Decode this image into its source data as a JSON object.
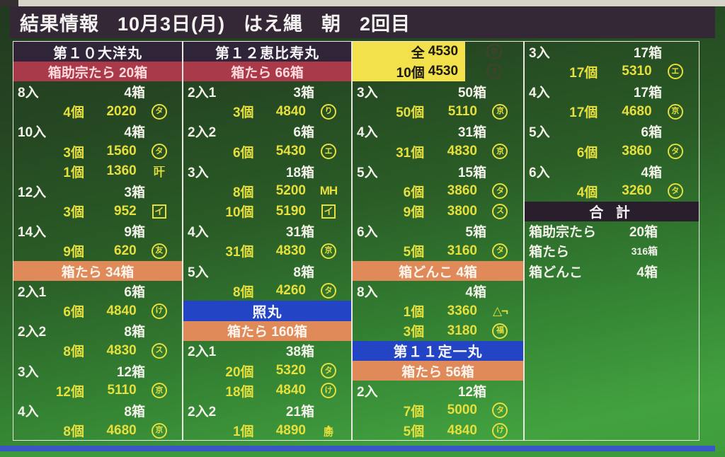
{
  "header": {
    "title": "結果情報",
    "date": "10月3日(月)",
    "method": "はえ縄",
    "session": "朝",
    "round": "2回目"
  },
  "colors": {
    "screen_green_top": "#22391f",
    "screen_green_bottom": "#42a23f",
    "titlebar_bg": "#342836",
    "boat_dark_bg": "#2f2438",
    "boat_blue_bg": "#2344c4",
    "species_red_bg": "#a93a49",
    "species_orange_bg": "#e18a59",
    "highlight_yellow_bg": "#f2e14b",
    "value_yellow": "#e6df3d",
    "text_white": "#f2f1ea"
  },
  "columns": [
    {
      "rows": [
        {
          "t": "boat",
          "style": "dark",
          "label": "第１０大洋丸"
        },
        {
          "t": "species",
          "style": "red",
          "label": "箱助宗たら 20箱"
        },
        {
          "t": "size",
          "label": "8入",
          "boxes": "4箱"
        },
        {
          "t": "detail",
          "count": "4個",
          "price": "2020",
          "mark": {
            "kind": "circle",
            "char": "タ"
          }
        },
        {
          "t": "size",
          "label": "10入",
          "boxes": "4箱"
        },
        {
          "t": "detail",
          "count": "3個",
          "price": "1560",
          "mark": {
            "kind": "circle",
            "char": "タ"
          }
        },
        {
          "t": "detail",
          "count": "1個",
          "price": "1360",
          "mark": {
            "kind": "overline",
            "char": "叶"
          }
        },
        {
          "t": "size",
          "label": "12入",
          "boxes": "3箱"
        },
        {
          "t": "detail",
          "count": "3個",
          "price": "952",
          "mark": {
            "kind": "box",
            "char": "イ"
          }
        },
        {
          "t": "size",
          "label": "14入",
          "boxes": "9箱"
        },
        {
          "t": "detail",
          "count": "9個",
          "price": "620",
          "mark": {
            "kind": "circle",
            "char": "友"
          }
        },
        {
          "t": "species",
          "style": "orange",
          "label": "箱たら 34箱"
        },
        {
          "t": "size",
          "label": "2入1",
          "boxes": "6箱"
        },
        {
          "t": "detail",
          "count": "6個",
          "price": "4840",
          "mark": {
            "kind": "circle",
            "char": "け"
          }
        },
        {
          "t": "size",
          "label": "2入2",
          "boxes": "8箱"
        },
        {
          "t": "detail",
          "count": "8個",
          "price": "4830",
          "mark": {
            "kind": "circle",
            "char": "ス"
          }
        },
        {
          "t": "size",
          "label": "3入",
          "boxes": "12箱"
        },
        {
          "t": "detail",
          "count": "12個",
          "price": "5110",
          "mark": {
            "kind": "circle",
            "char": "京"
          }
        },
        {
          "t": "size",
          "label": "4入",
          "boxes": "8箱"
        },
        {
          "t": "detail",
          "count": "8個",
          "price": "4680",
          "mark": {
            "kind": "circle",
            "char": "京"
          }
        }
      ]
    },
    {
      "rows": [
        {
          "t": "boat",
          "style": "dark",
          "label": "第１２恵比寿丸"
        },
        {
          "t": "species",
          "style": "red",
          "label": "箱たら 66箱"
        },
        {
          "t": "size",
          "label": "2入1",
          "boxes": "3箱"
        },
        {
          "t": "detail",
          "count": "3個",
          "price": "4840",
          "mark": {
            "kind": "circle",
            "char": "り"
          }
        },
        {
          "t": "size",
          "label": "2入2",
          "boxes": "6箱"
        },
        {
          "t": "detail",
          "count": "6個",
          "price": "5430",
          "mark": {
            "kind": "circle",
            "char": "エ"
          }
        },
        {
          "t": "size",
          "label": "3入",
          "boxes": "18箱"
        },
        {
          "t": "detail",
          "count": "8個",
          "price": "5200",
          "mark": {
            "kind": "text",
            "char": "MH"
          }
        },
        {
          "t": "detail",
          "count": "10個",
          "price": "5190",
          "mark": {
            "kind": "box",
            "char": "イ"
          }
        },
        {
          "t": "size",
          "label": "4入",
          "boxes": "31箱"
        },
        {
          "t": "detail",
          "count": "31個",
          "price": "4830",
          "mark": {
            "kind": "circle",
            "char": "京"
          }
        },
        {
          "t": "size",
          "label": "5入",
          "boxes": "8箱"
        },
        {
          "t": "detail",
          "count": "8個",
          "price": "4260",
          "mark": {
            "kind": "circle",
            "char": "タ"
          }
        },
        {
          "t": "boat",
          "style": "blue",
          "label": "照丸"
        },
        {
          "t": "species",
          "style": "orange",
          "label": "箱たら 160箱"
        },
        {
          "t": "size",
          "label": "2入1",
          "boxes": "38箱"
        },
        {
          "t": "detail",
          "count": "20個",
          "price": "5320",
          "mark": {
            "kind": "circle",
            "char": "タ"
          }
        },
        {
          "t": "detail",
          "count": "18個",
          "price": "4840",
          "mark": {
            "kind": "circle",
            "char": "け"
          }
        },
        {
          "t": "size",
          "label": "2入2",
          "boxes": "21箱"
        },
        {
          "t": "detail",
          "count": "1個",
          "price": "4890",
          "mark": {
            "kind": "roof",
            "char": "勝"
          }
        }
      ]
    },
    {
      "rows": [
        {
          "t": "highlight",
          "count": "全",
          "price": "4530",
          "mark": {
            "kind": "circle",
            "char": "京"
          }
        },
        {
          "t": "highlight",
          "count": "10個",
          "price": "4530",
          "mark": {
            "kind": "circle",
            "char": "ス"
          }
        },
        {
          "t": "size",
          "label": "3入",
          "boxes": "50箱"
        },
        {
          "t": "detail",
          "count": "50個",
          "price": "5110",
          "mark": {
            "kind": "circle",
            "char": "京"
          }
        },
        {
          "t": "size",
          "label": "4入",
          "boxes": "31箱"
        },
        {
          "t": "detail",
          "count": "31個",
          "price": "4830",
          "mark": {
            "kind": "circle",
            "char": "京"
          }
        },
        {
          "t": "size",
          "label": "5入",
          "boxes": "15箱"
        },
        {
          "t": "detail",
          "count": "6個",
          "price": "3860",
          "mark": {
            "kind": "circle",
            "char": "タ"
          }
        },
        {
          "t": "detail",
          "count": "9個",
          "price": "3800",
          "mark": {
            "kind": "circle",
            "char": "ス"
          }
        },
        {
          "t": "size",
          "label": "6入",
          "boxes": "5箱"
        },
        {
          "t": "detail",
          "count": "5個",
          "price": "3160",
          "mark": {
            "kind": "circle",
            "char": "タ"
          }
        },
        {
          "t": "species",
          "style": "orange",
          "label": "箱どんこ 4箱"
        },
        {
          "t": "size",
          "label": "8入",
          "boxes": "4箱"
        },
        {
          "t": "detail",
          "count": "1個",
          "price": "3360",
          "mark": {
            "kind": "text",
            "char": "△¬"
          }
        },
        {
          "t": "detail",
          "count": "3個",
          "price": "3180",
          "mark": {
            "kind": "circle",
            "char": "福"
          }
        },
        {
          "t": "boat",
          "style": "blue",
          "label": "第１１定一丸"
        },
        {
          "t": "species",
          "style": "orange",
          "label": "箱たら 56箱"
        },
        {
          "t": "size",
          "label": "2入",
          "boxes": "12箱"
        },
        {
          "t": "detail",
          "count": "7個",
          "price": "5000",
          "mark": {
            "kind": "circle",
            "char": "タ"
          }
        },
        {
          "t": "detail",
          "count": "5個",
          "price": "4840",
          "mark": {
            "kind": "circle",
            "char": "け"
          }
        }
      ]
    },
    {
      "rows": [
        {
          "t": "size",
          "label": "3入",
          "boxes": "17箱"
        },
        {
          "t": "detail",
          "count": "17個",
          "price": "5310",
          "mark": {
            "kind": "circle",
            "char": "エ"
          }
        },
        {
          "t": "size",
          "label": "4入",
          "boxes": "17箱"
        },
        {
          "t": "detail",
          "count": "17個",
          "price": "4680",
          "mark": {
            "kind": "circle",
            "char": "京"
          }
        },
        {
          "t": "size",
          "label": "5入",
          "boxes": "6箱"
        },
        {
          "t": "detail",
          "count": "6個",
          "price": "3860",
          "mark": {
            "kind": "circle",
            "char": "タ"
          }
        },
        {
          "t": "size",
          "label": "6入",
          "boxes": "4箱"
        },
        {
          "t": "detail",
          "count": "4個",
          "price": "3260",
          "mark": {
            "kind": "circle",
            "char": "タ"
          }
        },
        {
          "t": "total_header",
          "label": "合 計"
        },
        {
          "t": "summary",
          "label": "箱助宗たら",
          "value": "20箱"
        },
        {
          "t": "summary",
          "label": "箱たら",
          "value": "316箱",
          "small": true
        },
        {
          "t": "summary",
          "label": "箱どんこ",
          "value": "4箱"
        }
      ]
    }
  ]
}
